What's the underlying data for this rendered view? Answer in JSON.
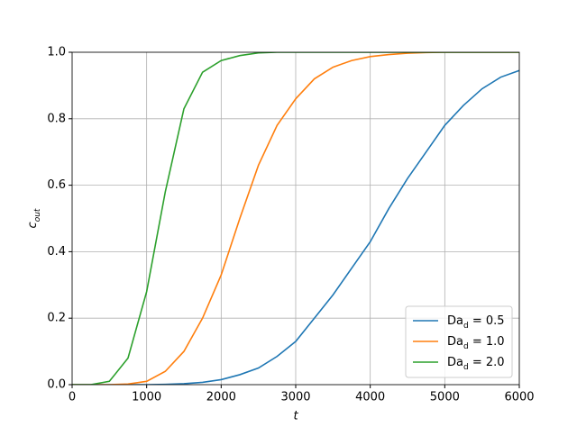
{
  "chart_data": {
    "type": "line",
    "xlabel": "t",
    "ylabel": "c_out",
    "x": [
      0,
      250,
      500,
      750,
      1000,
      1250,
      1500,
      1750,
      2000,
      2250,
      2500,
      2750,
      3000,
      3250,
      3500,
      3750,
      4000,
      4250,
      4500,
      4750,
      5000,
      5250,
      5500,
      5750,
      6000
    ],
    "series": [
      {
        "name": "Da_d = 0.5",
        "color": "#1f77b4",
        "values": [
          0,
          0,
          0,
          0,
          0,
          0.001,
          0.003,
          0.007,
          0.015,
          0.03,
          0.05,
          0.085,
          0.13,
          0.2,
          0.27,
          0.35,
          0.43,
          0.53,
          0.62,
          0.7,
          0.78,
          0.84,
          0.89,
          0.925,
          0.945
        ]
      },
      {
        "name": "Da_d = 1.0",
        "color": "#ff7f0e",
        "values": [
          0,
          0,
          0,
          0.002,
          0.01,
          0.04,
          0.1,
          0.2,
          0.33,
          0.5,
          0.66,
          0.78,
          0.86,
          0.92,
          0.955,
          0.975,
          0.987,
          0.993,
          0.997,
          0.999,
          1,
          1,
          1,
          1,
          1
        ]
      },
      {
        "name": "Da_d = 2.0",
        "color": "#2ca02c",
        "values": [
          0,
          0,
          0.01,
          0.08,
          0.28,
          0.58,
          0.83,
          0.94,
          0.975,
          0.99,
          0.998,
          1,
          1,
          1,
          1,
          1,
          1,
          1,
          1,
          1,
          1,
          1,
          1,
          1,
          1
        ]
      }
    ],
    "xlim": [
      0,
      6000
    ],
    "ylim": [
      0,
      1
    ],
    "xticks": [
      0,
      1000,
      2000,
      3000,
      4000,
      5000,
      6000
    ],
    "yticks": [
      {
        "value": 0,
        "label": "0.0"
      },
      {
        "value": 0.2,
        "label": "0.2"
      },
      {
        "value": 0.4,
        "label": "0.4"
      },
      {
        "value": 0.6,
        "label": "0.6"
      },
      {
        "value": 0.8,
        "label": "0.8"
      },
      {
        "value": 1,
        "label": "1.0"
      }
    ],
    "grid": true,
    "legend": "lower right"
  }
}
